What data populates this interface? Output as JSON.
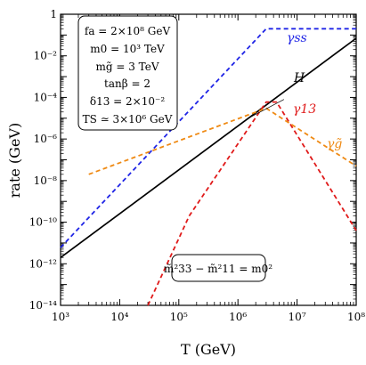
{
  "chart_data": {
    "type": "line",
    "xlabel": "T (GeV)",
    "ylabel": "rate (GeV)",
    "xscale": "log",
    "yscale": "log",
    "xlim": [
      1000,
      100000000
    ],
    "ylim": [
      1e-14,
      1
    ],
    "grid": false,
    "x_tick_labels": [
      "10³",
      "10⁴",
      "10⁵",
      "10⁶",
      "10⁷",
      "10⁸"
    ],
    "y_tick_labels": [
      "10⁻¹⁴",
      "10⁻¹²",
      "10⁻¹⁰",
      "10⁻⁸",
      "10⁻⁶",
      "10⁻⁴",
      "10⁻²",
      "1"
    ],
    "series": [
      {
        "name": "H",
        "color": "#000000",
        "style": "solid",
        "x": [
          1000,
          100000000
        ],
        "y": [
          2e-12,
          0.07
        ]
      },
      {
        "name": "γss",
        "color": "#1f24e6",
        "style": "dashed",
        "x": [
          1000,
          3000000,
          100000000
        ],
        "y": [
          6e-12,
          0.2,
          0.2
        ]
      },
      {
        "name": "γ13",
        "color": "#e01a1a",
        "style": "dashed",
        "x": [
          30000,
          150000,
          3000000,
          4500000,
          100000000
        ],
        "y": [
          1e-14,
          2e-10,
          6e-05,
          6e-05,
          4e-11
        ]
      },
      {
        "name": "γg̃",
        "color": "#ef8a14",
        "style": "dashed",
        "x": [
          3000,
          3000000,
          100000000
        ],
        "y": [
          2e-08,
          3e-05,
          5e-08
        ]
      }
    ],
    "thin_line": {
      "color": "#000000",
      "x": [
        1500000,
        6000000
      ],
      "y": [
        1e-05,
        8e-05
      ]
    },
    "parameter_box": {
      "lines": [
        "fa = 2×10⁸ GeV",
        "m0 = 10³ TeV",
        "mg̃ = 3 TeV",
        "tanβ = 2",
        "δ13 = 2×10⁻²",
        "TS ≃ 3×10⁶ GeV"
      ]
    },
    "relation_box": {
      "text": "m̃²33 − m̃²11 = m0²"
    }
  },
  "colors": {
    "H": "#000000",
    "gamma_ss": "#1f24e6",
    "gamma_13": "#e01a1a",
    "gamma_gluino": "#ef8a14"
  }
}
